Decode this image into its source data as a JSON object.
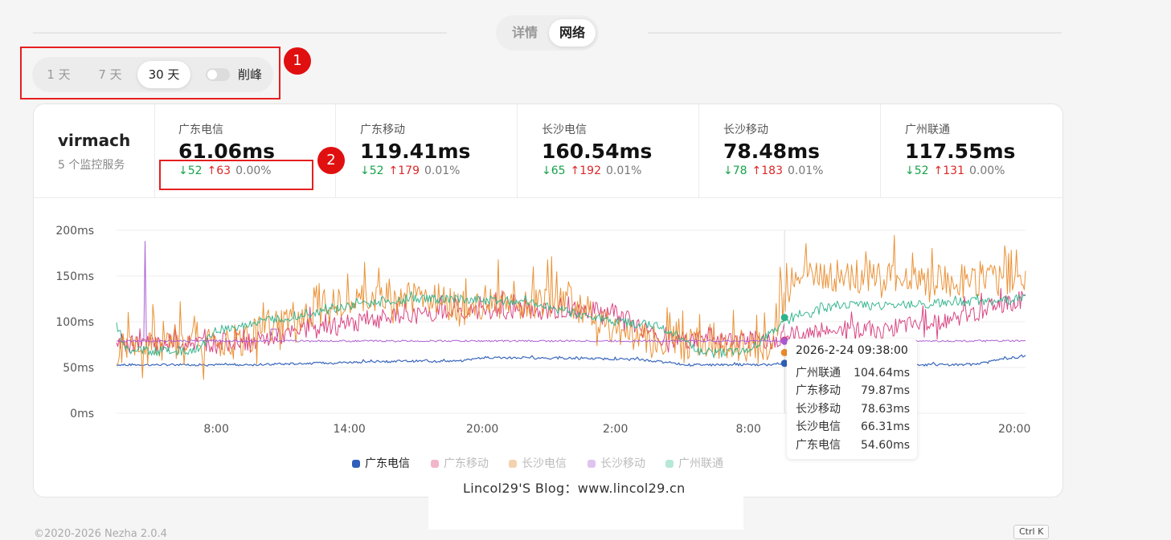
{
  "top_tabs": [
    "详情",
    "网络"
  ],
  "filters": {
    "buttons": [
      "1 天",
      "7 天",
      "30 天"
    ],
    "selected": "30 天",
    "peak_toggle_label": "削峰",
    "peak_toggle_on": false
  },
  "annotations": [
    "1",
    "2"
  ],
  "server": {
    "name": "virmach",
    "subtitle": "5 个监控服务"
  },
  "stats": [
    {
      "name": "广东电信",
      "value": "61.06ms",
      "down": "↓52",
      "up": "↑63",
      "loss": "0.00%"
    },
    {
      "name": "广东移动",
      "value": "119.41ms",
      "down": "↓52",
      "up": "↑179",
      "loss": "0.01%"
    },
    {
      "name": "长沙电信",
      "value": "160.54ms",
      "down": "↓65",
      "up": "↑192",
      "loss": "0.01%"
    },
    {
      "name": "长沙移动",
      "value": "78.48ms",
      "down": "↓78",
      "up": "↑183",
      "loss": "0.01%"
    },
    {
      "name": "广州联通",
      "value": "117.55ms",
      "down": "↓52",
      "up": "↑131",
      "loss": "0.00%"
    }
  ],
  "tooltip": {
    "title": "2026-2-24 09:38:00",
    "rows": [
      {
        "name": "广州联通",
        "value": "104.64ms"
      },
      {
        "name": "广东移动",
        "value": "79.87ms"
      },
      {
        "name": "长沙移动",
        "value": "78.63ms"
      },
      {
        "name": "长沙电信",
        "value": "66.31ms"
      },
      {
        "name": "广东电信",
        "value": "54.60ms"
      }
    ]
  },
  "chart_data": {
    "type": "line",
    "yticks": [
      "0ms",
      "50ms",
      "100ms",
      "150ms",
      "200ms"
    ],
    "ylim": [
      0,
      200
    ],
    "xticks": [
      "8:00",
      "14:00",
      "20:00",
      "2:00",
      "8:00",
      "14:00",
      "20:00"
    ],
    "x_range_hours": [
      3.5,
      44.5
    ],
    "hover_time_hours": 33.63,
    "grid": true,
    "legend_position": "bottom",
    "series": [
      {
        "name": "广东电信",
        "color": "#2f5fb8",
        "visible": true,
        "hover_value": 54.6,
        "keypoints": [
          [
            3.5,
            53
          ],
          [
            10,
            53
          ],
          [
            13,
            55
          ],
          [
            16,
            57
          ],
          [
            19,
            57
          ],
          [
            20,
            61
          ],
          [
            24,
            60
          ],
          [
            27,
            59
          ],
          [
            29,
            53
          ],
          [
            33,
            53
          ],
          [
            34,
            57
          ],
          [
            37,
            56
          ],
          [
            40,
            53
          ],
          [
            42,
            53
          ],
          [
            44,
            61
          ],
          [
            44.5,
            61
          ]
        ]
      },
      {
        "name": "广东移动",
        "color": "#d83c7c",
        "visible": false,
        "hover_value": 79.87,
        "keypoints": [
          [
            3.5,
            77
          ],
          [
            8,
            77
          ],
          [
            10,
            80
          ],
          [
            13,
            95
          ],
          [
            16,
            105
          ],
          [
            20,
            112
          ],
          [
            23,
            112
          ],
          [
            26,
            112
          ],
          [
            28,
            80
          ],
          [
            33,
            80
          ],
          [
            35,
            90
          ],
          [
            38,
            92
          ],
          [
            41,
            100
          ],
          [
            43,
            115
          ],
          [
            44.5,
            125
          ]
        ]
      },
      {
        "name": "长沙电信",
        "color": "#ea8c2c",
        "visible": false,
        "hover_value": 66.31,
        "keypoints": [
          [
            3.5,
            70
          ],
          [
            7,
            70
          ],
          [
            9,
            78
          ],
          [
            12,
            110
          ],
          [
            15,
            125
          ],
          [
            18,
            125
          ],
          [
            20,
            120
          ],
          [
            24,
            120
          ],
          [
            27,
            80
          ],
          [
            30,
            75
          ],
          [
            33,
            70
          ],
          [
            34,
            150
          ],
          [
            37,
            150
          ],
          [
            41,
            145
          ],
          [
            44.5,
            145
          ]
        ]
      },
      {
        "name": "长沙移动",
        "color": "#a95ad1",
        "visible": false,
        "hover_value": 78.63,
        "keypoints": [
          [
            3.5,
            79
          ],
          [
            44.5,
            79
          ]
        ]
      },
      {
        "name": "广州联通",
        "color": "#2eb38b",
        "visible": false,
        "hover_value": 104.64,
        "keypoints": [
          [
            3.5,
            95
          ],
          [
            4,
            68
          ],
          [
            7,
            68
          ],
          [
            8,
            90
          ],
          [
            10,
            100
          ],
          [
            13,
            112
          ],
          [
            16,
            125
          ],
          [
            19,
            125
          ],
          [
            22,
            122
          ],
          [
            25,
            104
          ],
          [
            28,
            95
          ],
          [
            30,
            65
          ],
          [
            32,
            68
          ],
          [
            34,
            105
          ],
          [
            36,
            118
          ],
          [
            39,
            118
          ],
          [
            42,
            122
          ],
          [
            44.5,
            125
          ]
        ]
      }
    ]
  },
  "watermark": "Lincol29'S Blog：www.lincol29.cn",
  "footer": "©2020-2026 Nezha 2.0.4",
  "shortcut": "Ctrl K"
}
